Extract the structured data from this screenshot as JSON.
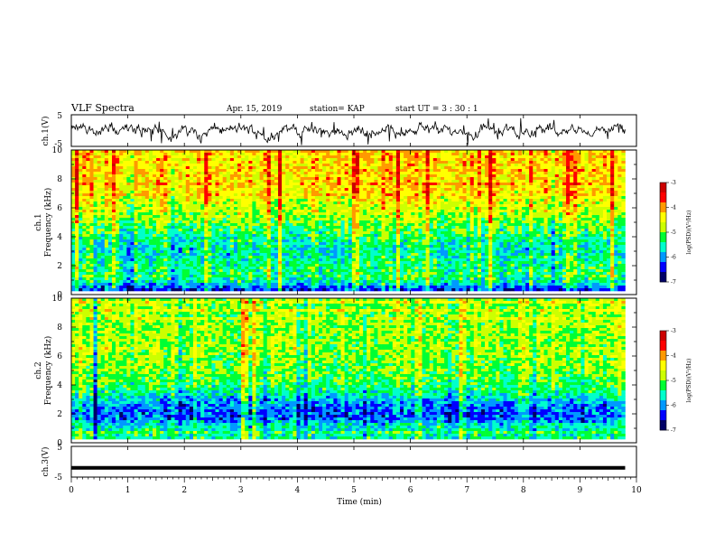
{
  "header": {
    "title": "VLF Spectra",
    "date": "Apr. 15, 2019",
    "station": "station= KAP",
    "start": "start  UT  =  3  : 30 : 1"
  },
  "colors": {
    "frame": "#000000",
    "background": "#ffffff",
    "colormap": [
      "#000066",
      "#0000ff",
      "#0099ff",
      "#00ffcc",
      "#00ff33",
      "#ccff00",
      "#ffff00",
      "#ff9900",
      "#ff0000",
      "#cc0000",
      "#ffffff"
    ]
  },
  "chart_data": [
    {
      "type": "line",
      "panel": "ch1-waveform",
      "ylabel": "ch.1(V)",
      "ytick_labels": [
        "5",
        "-5"
      ],
      "ylim": [
        -5,
        5
      ],
      "xlim": [
        0,
        10
      ],
      "data_extent_min": 9.8,
      "series": [
        {
          "description_values_range": [
            -2.5,
            2.5
          ],
          "mean": 0
        }
      ]
    },
    {
      "type": "heatmap",
      "panel": "ch1-spectrogram",
      "ylabel_line1": "ch.1",
      "ylabel_line2": "Frequency (kHz)",
      "ytick_labels": [
        "0",
        "2",
        "4",
        "6",
        "8",
        "10"
      ],
      "ylim": [
        0,
        10
      ],
      "xlim": [
        0,
        10
      ],
      "data_extent_min": 9.8,
      "colorbar": {
        "label": "log(PSD)(V²/Hz)",
        "tick_labels": [
          "-3",
          "-4",
          "-5",
          "-6",
          "-7"
        ],
        "range": [
          -7,
          -3
        ]
      },
      "level_profile": [
        {
          "f": 0.0,
          "v": -6.5
        },
        {
          "f": 0.6,
          "v": -5.6
        },
        {
          "f": 1.0,
          "v": -5.3
        },
        {
          "f": 2.0,
          "v": -5.4
        },
        {
          "f": 3.0,
          "v": -5.6
        },
        {
          "f": 4.0,
          "v": -5.3
        },
        {
          "f": 5.5,
          "v": -4.8
        },
        {
          "f": 7.0,
          "v": -4.4
        },
        {
          "f": 8.5,
          "v": -4.3
        },
        {
          "f": 10.0,
          "v": -4.3
        }
      ]
    },
    {
      "type": "heatmap",
      "panel": "ch2-spectrogram",
      "ylabel_line1": "ch.2",
      "ylabel_line2": "Frequency (kHz)",
      "ytick_labels": [
        "0",
        "2",
        "4",
        "6",
        "8",
        "10"
      ],
      "ylim": [
        0,
        10
      ],
      "xlim": [
        0,
        10
      ],
      "data_extent_min": 9.8,
      "colorbar": {
        "label": "log(PSD)(V²/Hz)",
        "tick_labels": [
          "-3",
          "-4",
          "-5",
          "-6",
          "-7"
        ],
        "range": [
          -7,
          -3
        ]
      },
      "level_profile": [
        {
          "f": 0.0,
          "v": -5.4
        },
        {
          "f": 1.0,
          "v": -5.6
        },
        {
          "f": 1.5,
          "v": -6.2
        },
        {
          "f": 2.5,
          "v": -6.0
        },
        {
          "f": 3.5,
          "v": -5.3
        },
        {
          "f": 5.0,
          "v": -5.0
        },
        {
          "f": 7.0,
          "v": -4.9
        },
        {
          "f": 10.0,
          "v": -4.9
        }
      ]
    },
    {
      "type": "line",
      "panel": "ch3-waveform",
      "ylabel": "ch.3(V)",
      "ytick_labels": [
        "5",
        "-5"
      ],
      "ylim": [
        -5,
        5
      ],
      "xlim": [
        0,
        10
      ],
      "data_extent_min": 9.8,
      "series": [
        {
          "constant_value": -2
        }
      ],
      "xlabel": "Time (min)",
      "xtick_labels": [
        "0",
        "1",
        "2",
        "3",
        "4",
        "5",
        "6",
        "7",
        "8",
        "9",
        "10"
      ]
    }
  ]
}
